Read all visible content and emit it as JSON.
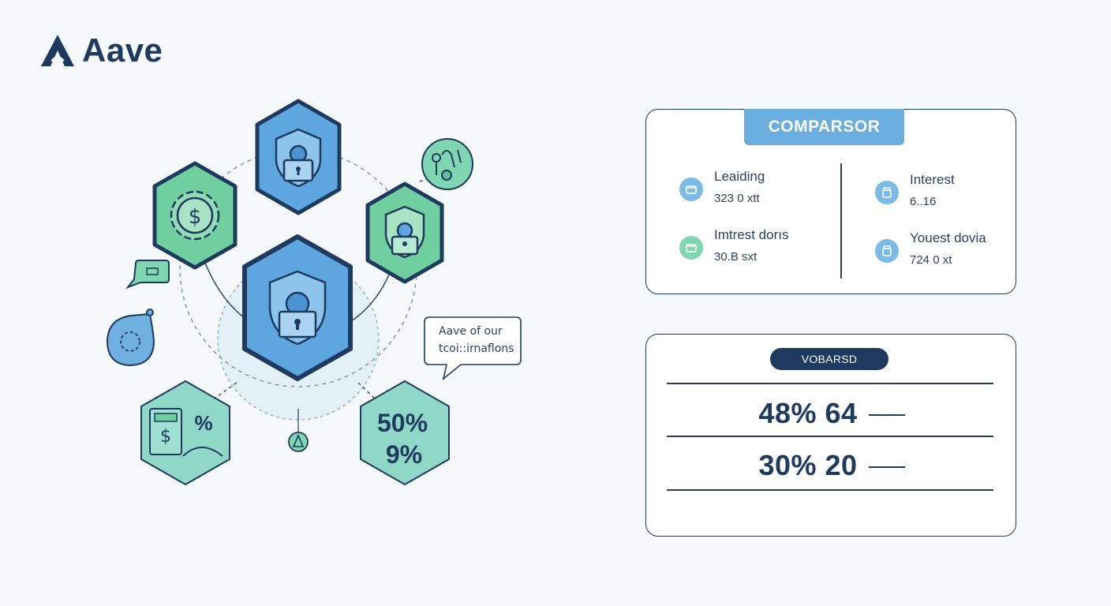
{
  "brand": {
    "name": "Aave"
  },
  "diagram": {
    "callout": {
      "line1": "Aave of our",
      "line2": "tcoi::irnaflons"
    },
    "hex_stats": {
      "top": "50%",
      "bottom": "9%"
    },
    "percent_badge": "%"
  },
  "comparison_card": {
    "title": "COMPARSOR",
    "metrics": [
      {
        "label": "Leaiding",
        "value": "323 0 xtt",
        "icon": "wallet-icon"
      },
      {
        "label": "Imtrest dorıs",
        "value": "30.B sxt",
        "icon": "wallet-icon"
      },
      {
        "label": "Interest",
        "value": "6..16",
        "icon": "jar-icon"
      },
      {
        "label": "Youest dovia",
        "value": "724 0 xt",
        "icon": "jar-icon"
      }
    ]
  },
  "stats_card": {
    "title": "VOBARSD",
    "rows": [
      {
        "value": "48% 64"
      },
      {
        "value": "30% 20"
      }
    ]
  },
  "colors": {
    "navy": "#1f3a5f",
    "blue": "#5ea6e0",
    "green": "#6fcf9e",
    "teal": "#8fd8c8",
    "tab": "#6aaee0"
  }
}
